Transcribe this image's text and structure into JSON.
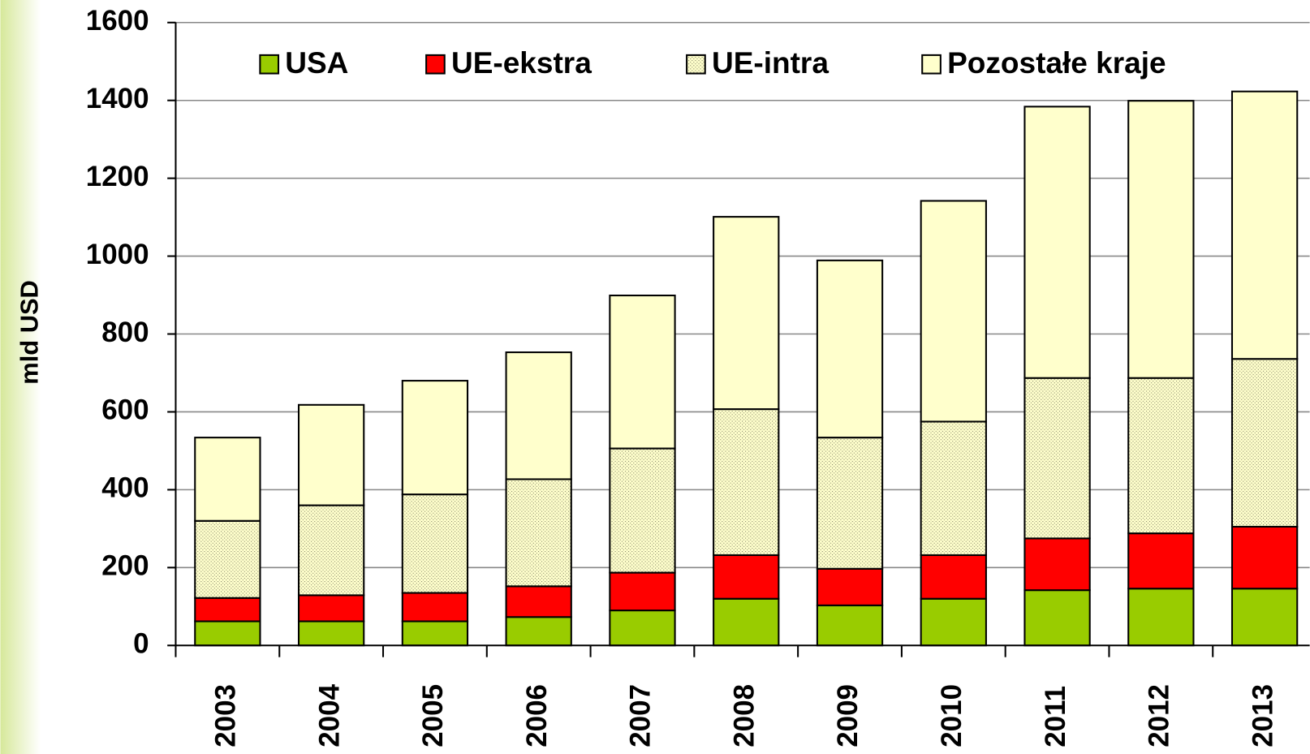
{
  "chart_data": {
    "type": "stacked_bar",
    "y_label": "mld USD",
    "categories": [
      "2003",
      "2004",
      "2005",
      "2006",
      "2007",
      "2008",
      "2009",
      "2010",
      "2011",
      "2012",
      "2013"
    ],
    "series": [
      {
        "name": "USA",
        "color": "#99cc00",
        "values": [
          62,
          62,
          62,
          73,
          90,
          120,
          103,
          120,
          142,
          146,
          146
        ]
      },
      {
        "name": "UE-ekstra",
        "color": "#ff0000",
        "values": [
          60,
          67,
          73,
          79,
          97,
          112,
          94,
          112,
          133,
          142,
          159
        ]
      },
      {
        "name": "UE-intra",
        "color": "#ffffcc",
        "pattern": "dots",
        "values": [
          198,
          231,
          253,
          275,
          319,
          375,
          337,
          343,
          412,
          399,
          431
        ]
      },
      {
        "name": "Pozostałe kraje",
        "color": "#ffffcc",
        "values": [
          214,
          258,
          292,
          326,
          393,
          494,
          455,
          567,
          697,
          712,
          687
        ]
      }
    ],
    "ylim": [
      0,
      1600
    ],
    "yticks": [
      0,
      200,
      400,
      600,
      800,
      1000,
      1200,
      1400,
      1600
    ],
    "grid": true,
    "legend": "top"
  }
}
